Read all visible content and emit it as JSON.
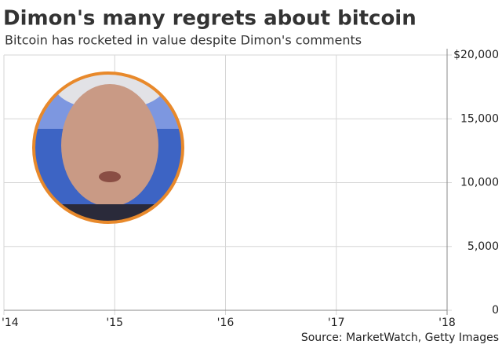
{
  "chart_data": {
    "type": "line",
    "title": "Dimon's many regrets about bitcoin",
    "subtitle": "Bitcoin has rocketed in value despite Dimon's comments",
    "source": "Source: MarketWatch, Getty Images",
    "xlim": [
      2014,
      2018
    ],
    "xticks": [
      {
        "value": 2014,
        "label": "'14"
      },
      {
        "value": 2015,
        "label": "'15"
      },
      {
        "value": 2016,
        "label": "'16"
      },
      {
        "value": 2017,
        "label": "'17"
      },
      {
        "value": 2018,
        "label": "'18"
      }
    ],
    "ylim": [
      0,
      20000
    ],
    "yticks": [
      0,
      {
        "value": 5000,
        "label": "5,000"
      },
      {
        "value": 10000,
        "label": "10,000"
      },
      {
        "value": 15000,
        "label": "15,000"
      },
      {
        "value": 20000,
        "label": "$20,000"
      }
    ],
    "grid": true
  }
}
